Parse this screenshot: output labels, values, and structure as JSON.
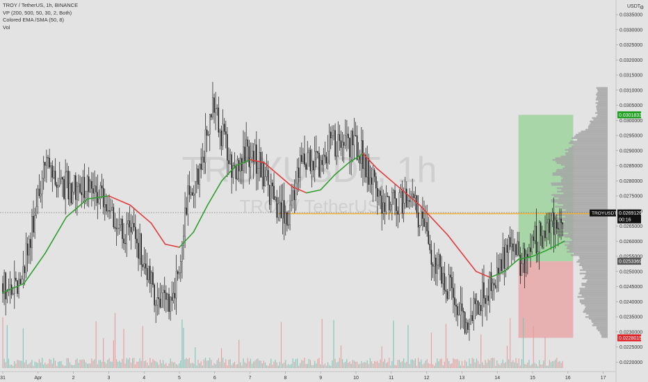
{
  "legend": {
    "title": "TROY / TetherUS, 1h, BINANCE",
    "vp": "VP (200, 500, 50, 30, 2, Both)",
    "ema": "Colored EMA /SMA (50, 8)",
    "vol": "Vol"
  },
  "watermark": {
    "big": "TROYUSDT, 1h",
    "small": "TROY / TetherUS"
  },
  "axis": {
    "currency": "USDT",
    "gear": "⚙"
  },
  "colors": {
    "background": "#e3e3e3",
    "up_candle": "#f5f5f5",
    "down_candle": "#111111",
    "ema_up": "#2e9e2e",
    "ema_down": "#e03a3a",
    "tp_zone": "#9fd49f",
    "sl_zone": "#e8a8a8",
    "volume_profile": "#a4a4a4",
    "vol_up": "#7bc4b7",
    "vol_down": "#e69a9a",
    "price_line": "#f0b040",
    "target_badge": "#1e9e1e",
    "stop_badge": "#e0242a",
    "entry_badge": "#555555",
    "symbol_badge": "#111111"
  },
  "chart_data": {
    "type": "candlestick",
    "symbol": "TROY / TetherUS",
    "timeframe": "1h",
    "exchange": "BINANCE",
    "ylim": [
      0.0218,
      0.0338
    ],
    "y_ticks": [
      "0.0335000",
      "0.0330000",
      "0.0325000",
      "0.0320000",
      "0.0315000",
      "0.0310000",
      "0.0305000",
      "0.0300000",
      "0.0295000",
      "0.0290000",
      "0.0285000",
      "0.0280000",
      "0.0275000",
      "0.0270000",
      "0.0265000",
      "0.0260000",
      "0.0255000",
      "0.0250000",
      "0.0245000",
      "0.0240000",
      "0.0235000",
      "0.0230000",
      "0.0225000",
      "0.0220000"
    ],
    "x_ticks": [
      "31",
      "Apr",
      "2",
      "3",
      "4",
      "5",
      "6",
      "7",
      "8",
      "9",
      "10",
      "11",
      "12",
      "13",
      "14",
      "15",
      "16",
      "17"
    ],
    "x_tick_days": [
      0,
      1,
      2,
      3,
      4,
      5,
      6,
      7,
      8,
      9,
      10,
      11,
      12,
      13,
      14,
      15,
      16,
      17
    ],
    "price_path_days": [
      0,
      0.4,
      0.8,
      1.2,
      1.6,
      2.0,
      2.4,
      2.9,
      3.2,
      3.6,
      3.9,
      4.2,
      4.6,
      4.9,
      5.1,
      5.3,
      5.6,
      5.9,
      6.3,
      6.6,
      6.9,
      7.2,
      7.5,
      7.8,
      8.1,
      8.4,
      8.7,
      9.0,
      9.3,
      9.6,
      9.9,
      10.2,
      10.5,
      10.8,
      11.1,
      11.5,
      11.8,
      12.1,
      12.4,
      12.7,
      13.0,
      13.2,
      13.5,
      13.8,
      14.1,
      14.4,
      14.7,
      15.0,
      15.3,
      15.6,
      15.9
    ],
    "price_path_values": [
      0.0246,
      0.0245,
      0.0262,
      0.0286,
      0.028,
      0.0277,
      0.028,
      0.0275,
      0.0265,
      0.0262,
      0.0258,
      0.0245,
      0.0238,
      0.0245,
      0.0262,
      0.0278,
      0.0282,
      0.0305,
      0.0292,
      0.0282,
      0.029,
      0.0287,
      0.0279,
      0.0268,
      0.027,
      0.0284,
      0.0286,
      0.0284,
      0.0293,
      0.029,
      0.0293,
      0.0288,
      0.028,
      0.0272,
      0.0272,
      0.0276,
      0.0268,
      0.0258,
      0.025,
      0.0243,
      0.0235,
      0.0234,
      0.024,
      0.0245,
      0.0252,
      0.0262,
      0.0252,
      0.026,
      0.0262,
      0.0266,
      0.0269
    ],
    "ema_days": [
      0,
      0.6,
      1.2,
      1.8,
      2.4,
      3.0,
      3.6,
      4.2,
      4.6,
      5.0,
      5.4,
      5.8,
      6.2,
      6.6,
      7.0,
      7.4,
      7.8,
      8.2,
      8.6,
      9.0,
      9.4,
      9.8,
      10.2,
      10.6,
      11.0,
      11.4,
      11.8,
      12.2,
      12.6,
      13.0,
      13.4,
      13.8,
      14.2,
      14.6,
      15.0,
      15.4,
      15.9
    ],
    "ema_values": [
      0.0243,
      0.0246,
      0.0256,
      0.0268,
      0.0274,
      0.0275,
      0.0272,
      0.0266,
      0.0259,
      0.0258,
      0.0263,
      0.0272,
      0.028,
      0.0285,
      0.0287,
      0.0286,
      0.0282,
      0.0278,
      0.0276,
      0.0277,
      0.0282,
      0.0286,
      0.0289,
      0.0284,
      0.028,
      0.0276,
      0.0272,
      0.0267,
      0.0262,
      0.0256,
      0.025,
      0.0248,
      0.025,
      0.0254,
      0.0255,
      0.0257,
      0.026
    ],
    "last_price": 0.0269126,
    "last_price_label": "0.0269126",
    "countdown": "00:16",
    "symbol_badge": "TROYUSDT",
    "position": {
      "target": 0.0301833,
      "entry": 0.0253369,
      "stop": 0.0228015,
      "target_label": "0.0301833",
      "entry_label": "0.0253369",
      "stop_label": "0.0228015",
      "start_day": 14.6,
      "end_day": 16.15
    },
    "volume_profile_range": [
      0.0228,
      0.0311
    ]
  }
}
